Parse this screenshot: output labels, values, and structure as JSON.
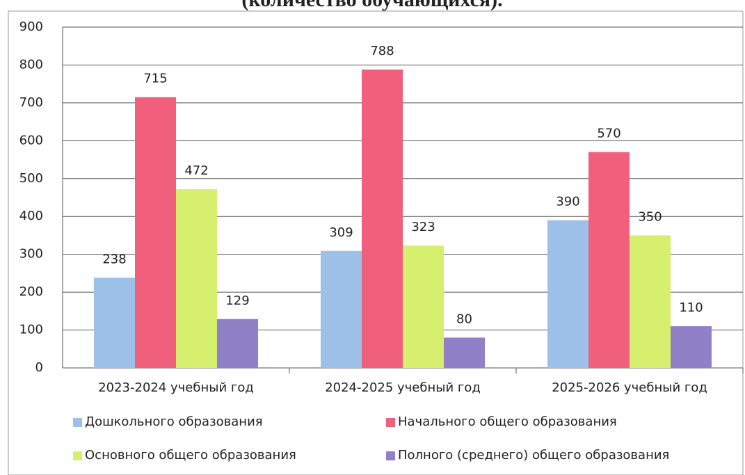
{
  "chart_data": {
    "type": "bar",
    "title": "(количество обучающихся).",
    "categories": [
      "2023-2024 учебный год",
      "2024-2025 учебный год",
      "2025-2026 учебный год"
    ],
    "series": [
      {
        "name": "Дошкольного образования",
        "color": "#9cc0e8",
        "values": [
          238,
          309,
          390
        ]
      },
      {
        "name": "Начального общего образования",
        "color": "#f0607c",
        "values": [
          715,
          788,
          570
        ]
      },
      {
        "name": "Основного общего образования",
        "color": "#d6ef6e",
        "values": [
          472,
          323,
          350
        ]
      },
      {
        "name": "Полного (среднего) общего образования",
        "color": "#9080c8",
        "values": [
          129,
          80,
          110
        ]
      }
    ],
    "ylim": [
      0,
      900
    ],
    "yticks": [
      0,
      100,
      200,
      300,
      400,
      500,
      600,
      700,
      800,
      900
    ],
    "grid": true
  }
}
